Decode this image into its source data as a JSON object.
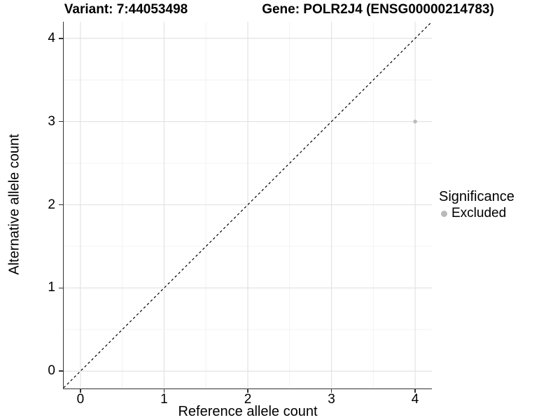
{
  "header": {
    "variant_title": "Variant: 7:44053498",
    "gene_title": "Gene: POLR2J4 (ENSG00000214783)"
  },
  "chart_data": {
    "type": "scatter",
    "title": "Variant: 7:44053498    Gene: POLR2J4 (ENSG00000214783)",
    "xlabel": "Reference allele count",
    "ylabel": "Alternative allele count",
    "xlim": [
      -0.2,
      4.2
    ],
    "ylim": [
      -0.2,
      4.2
    ],
    "xticks": [
      0,
      1,
      2,
      3,
      4
    ],
    "yticks": [
      0,
      1,
      2,
      3,
      4
    ],
    "minor_xticks": [
      0.5,
      1.5,
      2.5,
      3.5
    ],
    "minor_yticks": [
      0.5,
      1.5,
      2.5,
      3.5
    ],
    "grid": "major-and-minor",
    "points": [
      {
        "x": 4,
        "y": 3,
        "series": "Excluded"
      }
    ],
    "reference_line": {
      "type": "identity",
      "style": "dashed",
      "from": [
        -0.2,
        -0.2
      ],
      "to": [
        4.2,
        4.2
      ],
      "color": "#000000"
    },
    "legend": {
      "title": "Significance",
      "position": "right",
      "items": [
        {
          "label": "Excluded",
          "color": "#b9b9b9"
        }
      ]
    }
  },
  "colors": {
    "background": "#ffffff",
    "point": "#b9b9b9",
    "grid_major": "#e3e3e3",
    "grid_minor": "#f0f0f0",
    "axis_line": "#333333",
    "text": "#000000"
  }
}
